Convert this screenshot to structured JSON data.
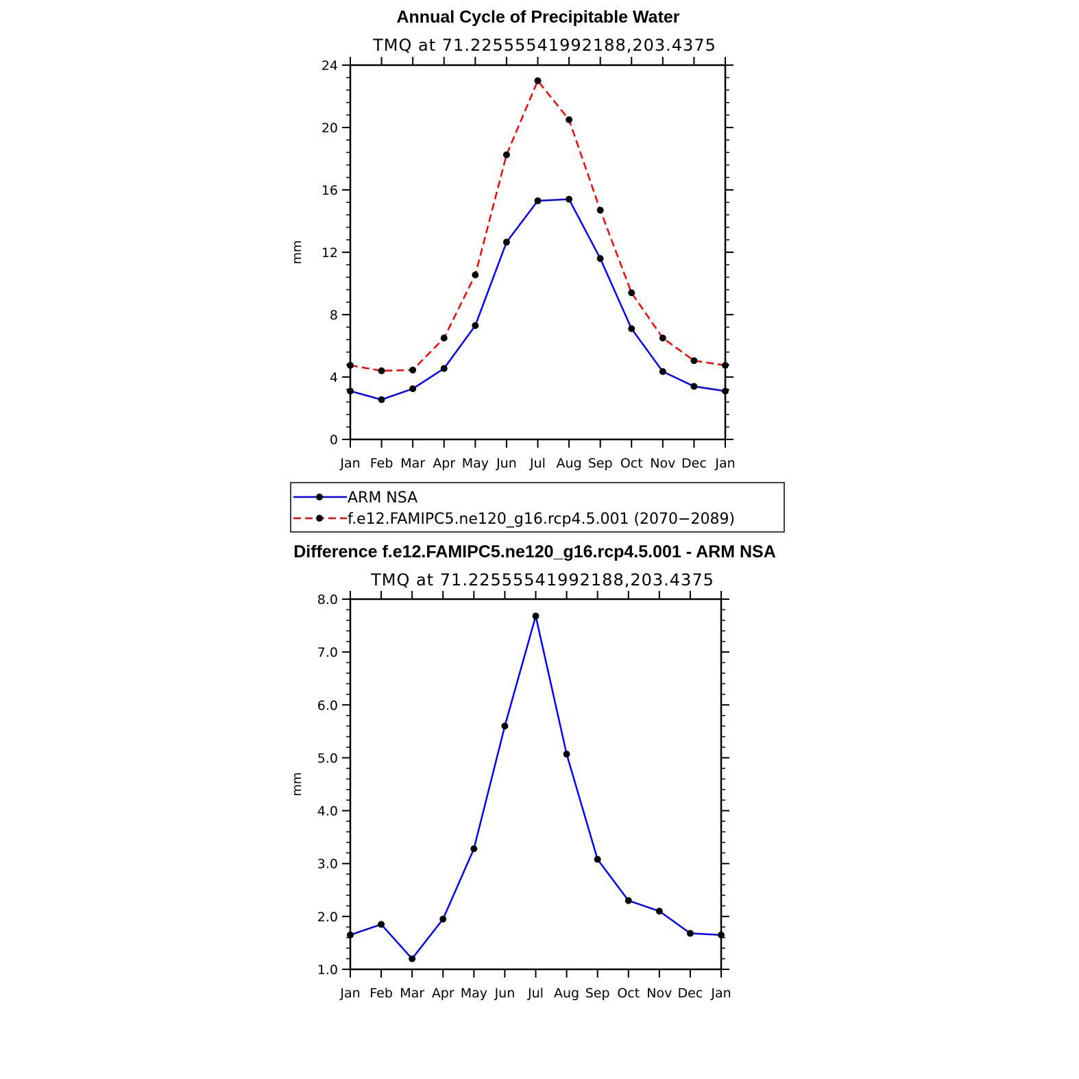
{
  "chart_data": [
    {
      "type": "line",
      "title": "Annual Cycle of Precipitable Water",
      "subtitle": "TMQ at 71.22555541992188,203.4375",
      "xlabel": "",
      "ylabel": "mm",
      "categories": [
        "Jan",
        "Feb",
        "Mar",
        "Apr",
        "May",
        "Jun",
        "Jul",
        "Aug",
        "Sep",
        "Oct",
        "Nov",
        "Dec",
        "Jan"
      ],
      "ylim": [
        0,
        24
      ],
      "yticks": [
        0,
        4,
        8,
        12,
        16,
        20,
        24
      ],
      "ytick_labels": [
        "0",
        "4",
        "8",
        "12",
        "16",
        "20",
        "24"
      ],
      "series": [
        {
          "name": "ARM NSA",
          "color": "#0000ff",
          "dash": "solid",
          "values": [
            3.1,
            2.55,
            3.25,
            4.55,
            7.3,
            12.65,
            15.3,
            15.4,
            11.6,
            7.1,
            4.35,
            3.4,
            3.1
          ]
        },
        {
          "name": "f.e12.FAMIPC5.ne120_g16.rcp4.5.001 (2070−2089)",
          "color": "#ff0000",
          "dash": "dashed",
          "values": [
            4.75,
            4.4,
            4.45,
            6.5,
            10.55,
            18.25,
            23.0,
            20.5,
            14.7,
            9.4,
            6.5,
            5.05,
            4.75
          ]
        }
      ]
    },
    {
      "type": "line",
      "title": "Difference f.e12.FAMIPC5.ne120_g16.rcp4.5.001 - ARM NSA",
      "subtitle": "TMQ at 71.22555541992188,203.4375",
      "xlabel": "",
      "ylabel": "mm",
      "categories": [
        "Jan",
        "Feb",
        "Mar",
        "Apr",
        "May",
        "Jun",
        "Jul",
        "Aug",
        "Sep",
        "Oct",
        "Nov",
        "Dec",
        "Jan"
      ],
      "ylim": [
        1.0,
        8.0
      ],
      "yticks": [
        1,
        2,
        3,
        4,
        5,
        6,
        7,
        8
      ],
      "ytick_labels": [
        "1.0",
        "2.0",
        "3.0",
        "4.0",
        "5.0",
        "6.0",
        "7.0",
        "8.0"
      ],
      "series": [
        {
          "name": "Difference",
          "color": "#0000ff",
          "dash": "solid",
          "values": [
            1.65,
            1.85,
            1.2,
            1.95,
            3.28,
            5.6,
            7.68,
            5.07,
            3.08,
            2.3,
            2.1,
            1.68,
            1.65
          ]
        }
      ]
    }
  ]
}
